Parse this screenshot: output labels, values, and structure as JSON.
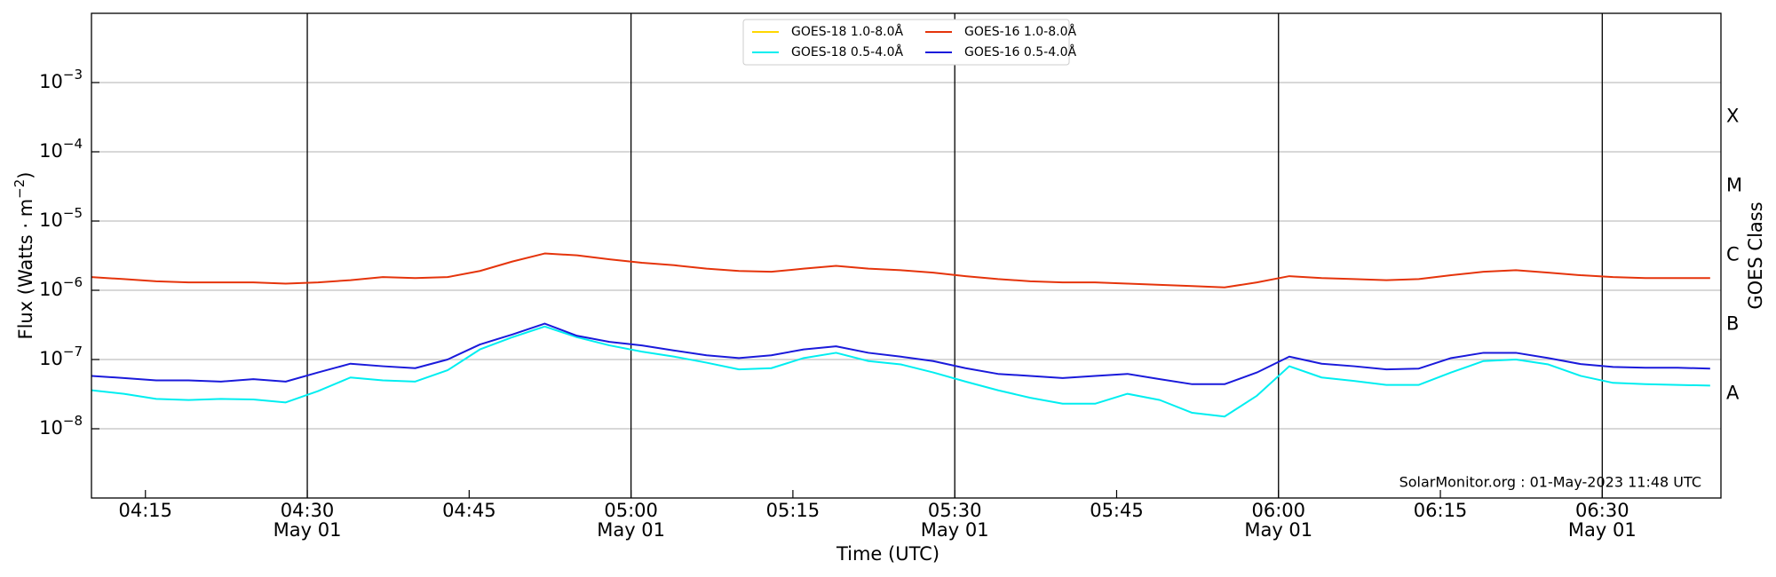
{
  "chart_data": {
    "type": "line",
    "ylabel": "Flux (Watts · m",
    "ylabel_exponent": "−2",
    "ylabel_end": ")",
    "xlabel": "Time (UTC)",
    "y2label": "GOES Class",
    "annotation": "SolarMonitor.org : 01-May-2023 11:48 UTC",
    "log_y": true,
    "grid": true,
    "legend": "top center",
    "x": [
      "04:10",
      "04:13",
      "04:16",
      "04:19",
      "04:22",
      "04:25",
      "04:28",
      "04:31",
      "04:34",
      "04:37",
      "04:40",
      "04:43",
      "04:46",
      "04:49",
      "04:52",
      "04:55",
      "04:58",
      "05:01",
      "05:04",
      "05:07",
      "05:10",
      "05:13",
      "05:16",
      "05:19",
      "05:22",
      "05:25",
      "05:28",
      "05:31",
      "05:34",
      "05:37",
      "05:40",
      "05:43",
      "05:46",
      "05:49",
      "05:52",
      "05:55",
      "05:58",
      "06:01",
      "06:04",
      "06:07",
      "06:10",
      "06:13",
      "06:16",
      "06:19",
      "06:22",
      "06:25",
      "06:28",
      "06:31",
      "06:34",
      "06:37",
      "06:40"
    ],
    "xlim": [
      "04:10",
      "06:41"
    ],
    "xticks": [
      {
        "value": "04:15",
        "label": "04:15"
      },
      {
        "value": "04:30",
        "label": "04:30",
        "date": "May 01"
      },
      {
        "value": "04:45",
        "label": "04:45"
      },
      {
        "value": "05:00",
        "label": "05:00",
        "date": "May 01"
      },
      {
        "value": "05:15",
        "label": "05:15"
      },
      {
        "value": "05:30",
        "label": "05:30",
        "date": "May 01"
      },
      {
        "value": "05:45",
        "label": "05:45"
      },
      {
        "value": "06:00",
        "label": "06:00",
        "date": "May 01"
      },
      {
        "value": "06:15",
        "label": "06:15"
      },
      {
        "value": "06:30",
        "label": "06:30",
        "date": "May 01"
      }
    ],
    "vlines": [
      "04:30",
      "05:00",
      "05:30",
      "06:00",
      "06:30"
    ],
    "ylim": [
      1e-09,
      0.01
    ],
    "yticks": [
      {
        "value": 1e-08,
        "label": "10",
        "exponent": "−8"
      },
      {
        "value": 1e-07,
        "label": "10",
        "exponent": "−7"
      },
      {
        "value": 1e-06,
        "label": "10",
        "exponent": "−6"
      },
      {
        "value": 1e-05,
        "label": "10",
        "exponent": "−5"
      },
      {
        "value": 0.0001,
        "label": "10",
        "exponent": "−4"
      },
      {
        "value": 0.001,
        "label": "10",
        "exponent": "−3"
      }
    ],
    "y2lim": [
      1e-09,
      0.01
    ],
    "y2ticks": [
      {
        "value": 3.2e-08,
        "label": "A"
      },
      {
        "value": 3.2e-07,
        "label": "B"
      },
      {
        "value": 3.2e-06,
        "label": "C"
      },
      {
        "value": 3.2e-05,
        "label": "M"
      },
      {
        "value": 0.00032,
        "label": "X"
      }
    ],
    "series": [
      {
        "name": "GOES-18 1.0-8.0Å",
        "color": "#ffd700",
        "values": [
          null,
          null,
          null,
          null,
          null,
          null,
          null,
          null,
          null,
          null,
          null,
          null,
          null,
          null,
          null,
          null,
          null,
          null,
          null,
          null,
          null,
          null,
          null,
          null,
          null,
          null,
          null,
          null,
          null,
          null,
          null,
          null,
          null,
          null,
          null,
          null,
          null,
          null,
          null,
          null,
          null,
          null,
          null,
          null,
          null,
          null,
          null,
          null,
          null,
          null,
          null
        ]
      },
      {
        "name": "GOES-18 0.5-4.0Å",
        "color": "#00eef0",
        "values": [
          3.6e-08,
          3.2e-08,
          2.7e-08,
          2.6e-08,
          2.7e-08,
          2.65e-08,
          2.4e-08,
          3.5e-08,
          5.5e-08,
          5e-08,
          4.8e-08,
          7e-08,
          1.4e-07,
          2.1e-07,
          3e-07,
          2.1e-07,
          1.6e-07,
          1.3e-07,
          1.1e-07,
          9e-08,
          7.2e-08,
          7.5e-08,
          1.05e-07,
          1.25e-07,
          9.5e-08,
          8.5e-08,
          6.5e-08,
          4.8e-08,
          3.6e-08,
          2.8e-08,
          2.3e-08,
          2.3e-08,
          3.2e-08,
          2.6e-08,
          1.7e-08,
          1.5e-08,
          3e-08,
          8e-08,
          5.5e-08,
          4.9e-08,
          4.3e-08,
          4.3e-08,
          6.5e-08,
          9.5e-08,
          1e-07,
          8.5e-08,
          5.8e-08,
          4.6e-08,
          4.4e-08,
          4.3e-08,
          4.2e-08
        ]
      },
      {
        "name": "GOES-16 1.0-8.0Å",
        "color": "#e5340b",
        "values": [
          1.55e-06,
          1.45e-06,
          1.35e-06,
          1.3e-06,
          1.3e-06,
          1.3e-06,
          1.25e-06,
          1.3e-06,
          1.4e-06,
          1.55e-06,
          1.5e-06,
          1.55e-06,
          1.9e-06,
          2.6e-06,
          3.4e-06,
          3.2e-06,
          2.8e-06,
          2.5e-06,
          2.3e-06,
          2.05e-06,
          1.9e-06,
          1.85e-06,
          2.05e-06,
          2.25e-06,
          2.05e-06,
          1.95e-06,
          1.8e-06,
          1.6e-06,
          1.45e-06,
          1.35e-06,
          1.3e-06,
          1.3e-06,
          1.25e-06,
          1.2e-06,
          1.15e-06,
          1.1e-06,
          1.3e-06,
          1.6e-06,
          1.5e-06,
          1.45e-06,
          1.4e-06,
          1.45e-06,
          1.65e-06,
          1.85e-06,
          1.95e-06,
          1.8e-06,
          1.65e-06,
          1.55e-06,
          1.5e-06,
          1.5e-06,
          1.5e-06
        ]
      },
      {
        "name": "GOES-16 0.5-4.0Å",
        "color": "#1a1adb",
        "values": [
          5.8e-08,
          5.4e-08,
          5e-08,
          5e-08,
          4.8e-08,
          5.2e-08,
          4.8e-08,
          6.5e-08,
          8.7e-08,
          8e-08,
          7.5e-08,
          1e-07,
          1.65e-07,
          2.3e-07,
          3.3e-07,
          2.2e-07,
          1.8e-07,
          1.6e-07,
          1.35e-07,
          1.15e-07,
          1.05e-07,
          1.15e-07,
          1.4e-07,
          1.55e-07,
          1.25e-07,
          1.1e-07,
          9.5e-08,
          7.5e-08,
          6.2e-08,
          5.8e-08,
          5.4e-08,
          5.8e-08,
          6.2e-08,
          5.2e-08,
          4.4e-08,
          4.4e-08,
          6.5e-08,
          1.1e-07,
          8.7e-08,
          8e-08,
          7.2e-08,
          7.4e-08,
          1.05e-07,
          1.25e-07,
          1.25e-07,
          1.05e-07,
          8.6e-08,
          7.8e-08,
          7.6e-08,
          7.6e-08,
          7.4e-08
        ]
      }
    ]
  }
}
